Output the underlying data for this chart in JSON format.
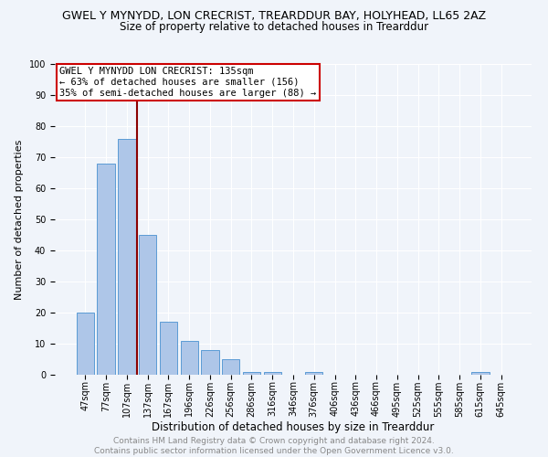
{
  "title": "GWEL Y MYNYDD, LON CRECRIST, TREARDDUR BAY, HOLYHEAD, LL65 2AZ",
  "subtitle": "Size of property relative to detached houses in Trearddur",
  "xlabel": "Distribution of detached houses by size in Trearddur",
  "ylabel": "Number of detached properties",
  "categories": [
    "47sqm",
    "77sqm",
    "107sqm",
    "137sqm",
    "167sqm",
    "196sqm",
    "226sqm",
    "256sqm",
    "286sqm",
    "316sqm",
    "346sqm",
    "376sqm",
    "406sqm",
    "436sqm",
    "466sqm",
    "495sqm",
    "525sqm",
    "555sqm",
    "585sqm",
    "615sqm",
    "645sqm"
  ],
  "values": [
    20,
    68,
    76,
    45,
    17,
    11,
    8,
    5,
    1,
    1,
    0,
    1,
    0,
    0,
    0,
    0,
    0,
    0,
    0,
    1,
    0
  ],
  "bar_color": "#aec6e8",
  "bar_edge_color": "#5b9bd5",
  "marker_label": "GWEL Y MYNYDD LON CRECRIST: 135sqm",
  "annotation_line1": "← 63% of detached houses are smaller (156)",
  "annotation_line2": "35% of semi-detached houses are larger (88) →",
  "marker_color": "#8b0000",
  "box_edge_color": "#cc0000",
  "background_color": "#f0f4fa",
  "grid_color": "#ffffff",
  "ylim": [
    0,
    100
  ],
  "footer": "Contains HM Land Registry data © Crown copyright and database right 2024.\nContains public sector information licensed under the Open Government Licence v3.0.",
  "title_fontsize": 9,
  "subtitle_fontsize": 8.5,
  "xlabel_fontsize": 8.5,
  "ylabel_fontsize": 8,
  "tick_fontsize": 7,
  "footer_fontsize": 6.5,
  "annotation_fontsize": 7.5
}
